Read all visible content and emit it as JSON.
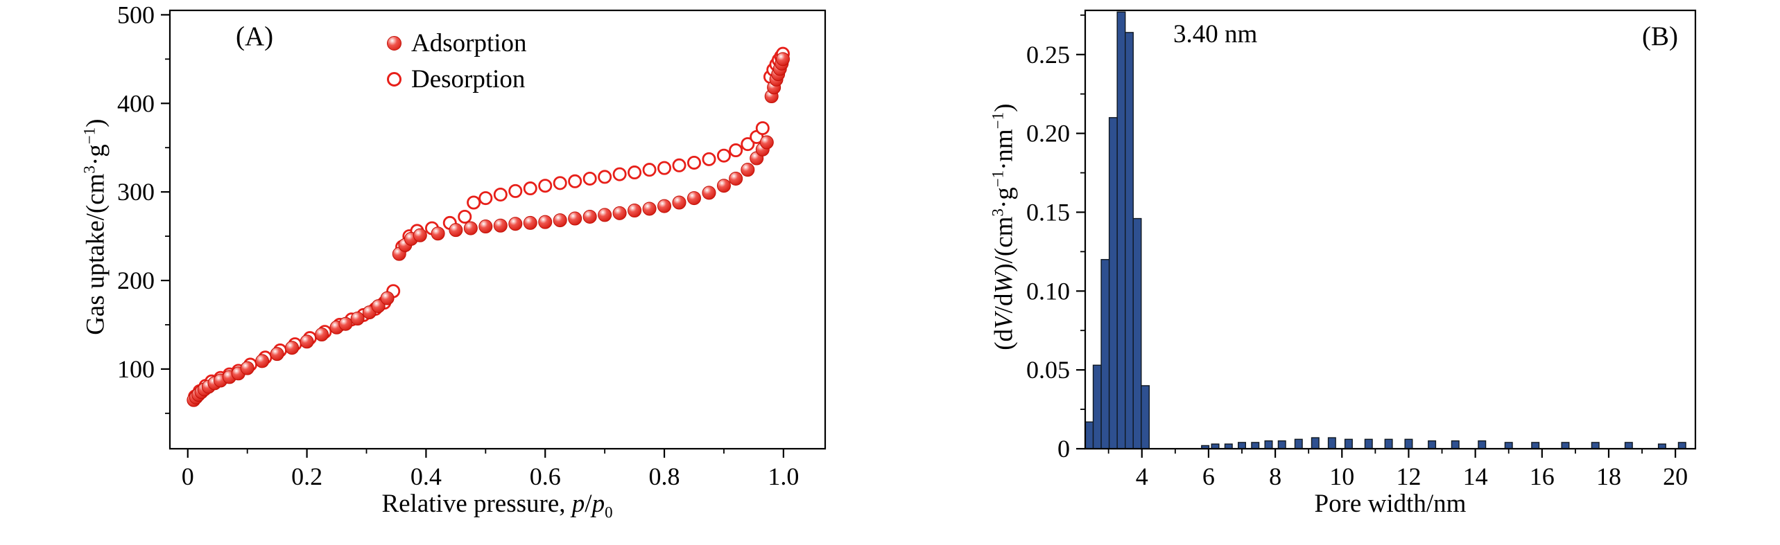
{
  "colors": {
    "marker_red": "#e71f19",
    "marker_red_dark": "#c21007",
    "bar_blue": "#2e5090",
    "bar_edge": "#101820",
    "axis_black": "#000000"
  },
  "text": {
    "panel_a_label": "(A)",
    "panel_b_label": "(B)",
    "annotation_b": "3.40 nm",
    "legend_adsorption": "Adsorption",
    "legend_desorption": "Desorption",
    "axis_a_x": {
      "t1": "Relative pressure, ",
      "t2": "p",
      "t3": "/",
      "t4": "p",
      "t5": "0"
    },
    "axis_a_y": {
      "t1": "Gas uptake/(cm",
      "t2": "3",
      "t3": "·g",
      "t4": "−1",
      "t5": ")"
    },
    "axis_b_x": {
      "t1": "Pore width/nm"
    },
    "axis_b_y": {
      "t1": "(d",
      "t2": "V",
      "t3": "/d",
      "t4": "W",
      "t5": ")/(cm",
      "t6": "3",
      "t7": "·g",
      "t8": "−1",
      "t9": "·nm",
      "t10": "−1",
      "t11": ")"
    }
  },
  "chart_data": [
    {
      "id": "panel_a",
      "type": "scatter",
      "panel_label": "(A)",
      "xlabel": "Relative pressure, p/p₀",
      "ylabel": "Gas uptake/(cm³·g⁻¹)",
      "legend_position": "top-center-left",
      "grid": false,
      "xlim": [
        -0.03,
        1.07
      ],
      "ylim": [
        10,
        505
      ],
      "x_minor_step": 0.1,
      "y_minor_step": 50,
      "x_ticks": [
        [
          0,
          "0"
        ],
        [
          0.2,
          "0.2"
        ],
        [
          0.4,
          "0.4"
        ],
        [
          0.6,
          "0.6"
        ],
        [
          0.8,
          "0.8"
        ],
        [
          1.0,
          "1.0"
        ]
      ],
      "y_ticks": [
        [
          100,
          "100"
        ],
        [
          200,
          "200"
        ],
        [
          300,
          "300"
        ],
        [
          400,
          "400"
        ],
        [
          500,
          "500"
        ]
      ],
      "series": [
        {
          "name": "Adsorption",
          "marker": "filled-circle",
          "color": "#e71f19",
          "points": [
            [
              0.01,
              65
            ],
            [
              0.014,
              68
            ],
            [
              0.018,
              71
            ],
            [
              0.023,
              74
            ],
            [
              0.028,
              77
            ],
            [
              0.035,
              80
            ],
            [
              0.045,
              84
            ],
            [
              0.055,
              87
            ],
            [
              0.07,
              91
            ],
            [
              0.085,
              95
            ],
            [
              0.1,
              101
            ],
            [
              0.125,
              109
            ],
            [
              0.15,
              117
            ],
            [
              0.175,
              124
            ],
            [
              0.2,
              131
            ],
            [
              0.225,
              139
            ],
            [
              0.25,
              147
            ],
            [
              0.265,
              151
            ],
            [
              0.285,
              157
            ],
            [
              0.305,
              164
            ],
            [
              0.32,
              171
            ],
            [
              0.335,
              180
            ],
            [
              0.355,
              230
            ],
            [
              0.365,
              240
            ],
            [
              0.375,
              247
            ],
            [
              0.39,
              251
            ],
            [
              0.42,
              253
            ],
            [
              0.45,
              257
            ],
            [
              0.475,
              259
            ],
            [
              0.5,
              261
            ],
            [
              0.525,
              262
            ],
            [
              0.55,
              264
            ],
            [
              0.575,
              265
            ],
            [
              0.6,
              266
            ],
            [
              0.625,
              268
            ],
            [
              0.65,
              270
            ],
            [
              0.675,
              272
            ],
            [
              0.7,
              274
            ],
            [
              0.725,
              276
            ],
            [
              0.75,
              279
            ],
            [
              0.775,
              281
            ],
            [
              0.8,
              284
            ],
            [
              0.825,
              288
            ],
            [
              0.85,
              293
            ],
            [
              0.875,
              299
            ],
            [
              0.9,
              307
            ],
            [
              0.92,
              315
            ],
            [
              0.94,
              325
            ],
            [
              0.955,
              338
            ],
            [
              0.965,
              348
            ],
            [
              0.972,
              356
            ],
            [
              0.98,
              408
            ],
            [
              0.984,
              418
            ],
            [
              0.988,
              427
            ],
            [
              0.991,
              433
            ],
            [
              0.994,
              439
            ],
            [
              0.997,
              445
            ],
            [
              0.999,
              450
            ]
          ]
        },
        {
          "name": "Desorption",
          "marker": "open-circle",
          "color": "#e71f19",
          "points": [
            [
              0.012,
              69
            ],
            [
              0.02,
              75
            ],
            [
              0.03,
              81
            ],
            [
              0.04,
              86
            ],
            [
              0.055,
              90
            ],
            [
              0.07,
              94
            ],
            [
              0.085,
              98
            ],
            [
              0.105,
              105
            ],
            [
              0.13,
              113
            ],
            [
              0.155,
              121
            ],
            [
              0.18,
              128
            ],
            [
              0.205,
              135
            ],
            [
              0.23,
              142
            ],
            [
              0.255,
              150
            ],
            [
              0.275,
              156
            ],
            [
              0.295,
              161
            ],
            [
              0.315,
              168
            ],
            [
              0.33,
              175
            ],
            [
              0.345,
              188
            ],
            [
              0.36,
              238
            ],
            [
              0.372,
              250
            ],
            [
              0.385,
              256
            ],
            [
              0.41,
              259
            ],
            [
              0.44,
              265
            ],
            [
              0.465,
              272
            ],
            [
              0.48,
              288
            ],
            [
              0.5,
              293
            ],
            [
              0.525,
              297
            ],
            [
              0.55,
              301
            ],
            [
              0.575,
              304
            ],
            [
              0.6,
              307
            ],
            [
              0.625,
              310
            ],
            [
              0.65,
              312
            ],
            [
              0.675,
              315
            ],
            [
              0.7,
              317
            ],
            [
              0.725,
              320
            ],
            [
              0.75,
              322
            ],
            [
              0.775,
              325
            ],
            [
              0.8,
              327
            ],
            [
              0.825,
              330
            ],
            [
              0.85,
              333
            ],
            [
              0.875,
              337
            ],
            [
              0.9,
              341
            ],
            [
              0.92,
              347
            ],
            [
              0.94,
              354
            ],
            [
              0.955,
              362
            ],
            [
              0.965,
              372
            ],
            [
              0.978,
              430
            ],
            [
              0.983,
              438
            ],
            [
              0.988,
              444
            ],
            [
              0.992,
              449
            ],
            [
              0.996,
              453
            ],
            [
              0.999,
              456
            ]
          ]
        }
      ]
    },
    {
      "id": "panel_b",
      "type": "bar",
      "panel_label": "(B)",
      "annotation": "3.40 nm",
      "xlabel": "Pore width/nm",
      "ylabel": "(dV/dW)/(cm³·g⁻¹·nm⁻¹)",
      "grid": false,
      "xlim": [
        2.3,
        20.6
      ],
      "ylim": [
        0,
        0.278
      ],
      "x_minor_step": 1,
      "y_minor_step": 0.025,
      "x_ticks": [
        [
          4,
          "4"
        ],
        [
          6,
          "6"
        ],
        [
          8,
          "8"
        ],
        [
          10,
          "10"
        ],
        [
          12,
          "12"
        ],
        [
          14,
          "14"
        ],
        [
          16,
          "16"
        ],
        [
          18,
          "18"
        ],
        [
          20,
          "20"
        ]
      ],
      "y_ticks": [
        [
          0,
          "0"
        ],
        [
          0.05,
          "0.05"
        ],
        [
          0.1,
          "0.10"
        ],
        [
          0.15,
          "0.15"
        ],
        [
          0.2,
          "0.20"
        ],
        [
          0.25,
          "0.25"
        ]
      ],
      "bar_color": "#2e5090",
      "bar_edge": "#101820",
      "bars": [
        [
          2.42,
          0.24,
          0.017
        ],
        [
          2.66,
          0.24,
          0.053
        ],
        [
          2.9,
          0.24,
          0.12
        ],
        [
          3.14,
          0.24,
          0.21
        ],
        [
          3.38,
          0.24,
          0.277
        ],
        [
          3.62,
          0.24,
          0.264
        ],
        [
          3.86,
          0.24,
          0.146
        ],
        [
          4.1,
          0.24,
          0.04
        ],
        [
          5.9,
          0.22,
          0.002
        ],
        [
          6.2,
          0.22,
          0.003
        ],
        [
          6.6,
          0.22,
          0.003
        ],
        [
          7.0,
          0.22,
          0.004
        ],
        [
          7.4,
          0.22,
          0.004
        ],
        [
          7.8,
          0.22,
          0.005
        ],
        [
          8.2,
          0.22,
          0.005
        ],
        [
          8.7,
          0.22,
          0.006
        ],
        [
          9.2,
          0.22,
          0.007
        ],
        [
          9.7,
          0.22,
          0.007
        ],
        [
          10.2,
          0.22,
          0.006
        ],
        [
          10.8,
          0.22,
          0.006
        ],
        [
          11.4,
          0.22,
          0.006
        ],
        [
          12.0,
          0.22,
          0.006
        ],
        [
          12.7,
          0.22,
          0.005
        ],
        [
          13.4,
          0.22,
          0.005
        ],
        [
          14.2,
          0.22,
          0.005
        ],
        [
          15.0,
          0.22,
          0.004
        ],
        [
          15.8,
          0.22,
          0.004
        ],
        [
          16.7,
          0.22,
          0.004
        ],
        [
          17.6,
          0.22,
          0.004
        ],
        [
          18.6,
          0.22,
          0.004
        ],
        [
          19.6,
          0.22,
          0.003
        ],
        [
          20.2,
          0.22,
          0.004
        ]
      ]
    }
  ]
}
